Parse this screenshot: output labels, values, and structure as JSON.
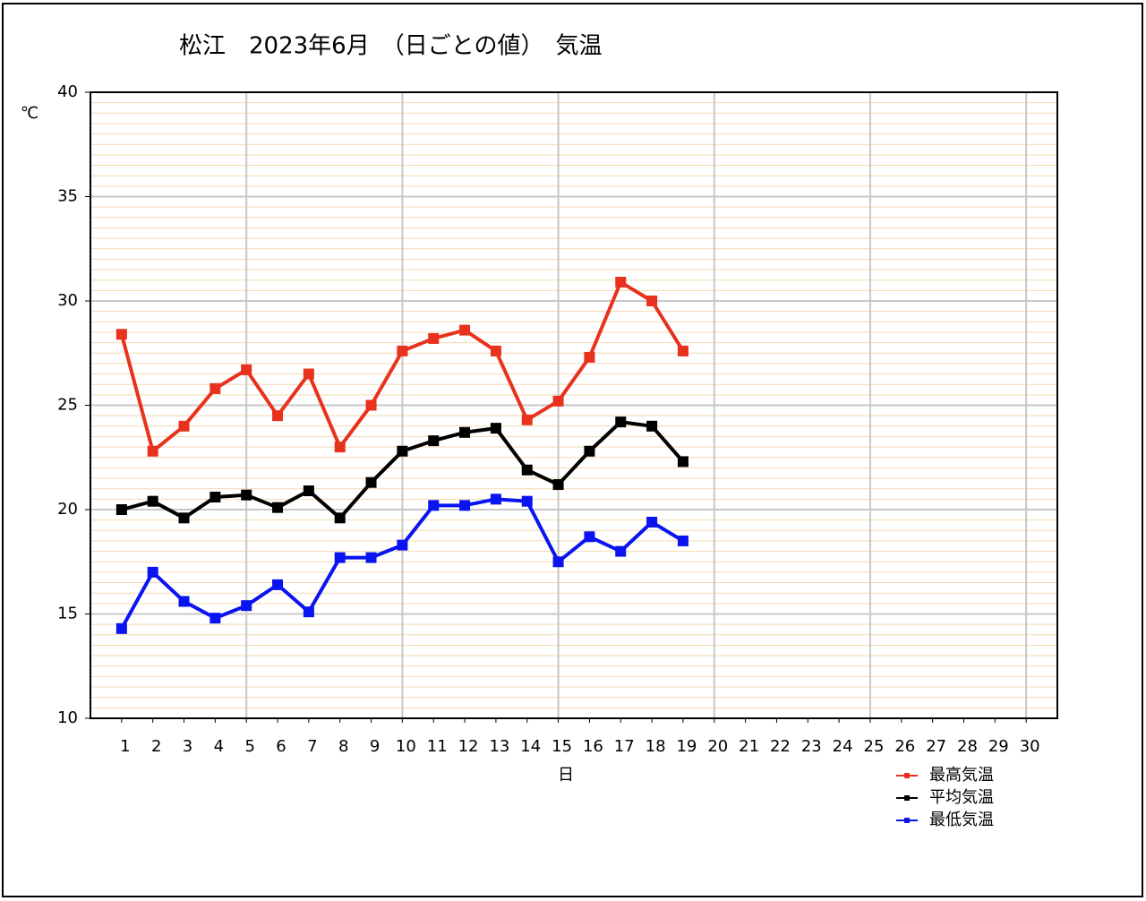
{
  "chart_data": {
    "type": "line",
    "title": "松江　2023年6月　（日ごとの値）　気温",
    "y_label": "℃",
    "x_label": "日",
    "x": [
      1,
      2,
      3,
      4,
      5,
      6,
      7,
      8,
      9,
      10,
      11,
      12,
      13,
      14,
      15,
      16,
      17,
      18,
      19
    ],
    "xlim": [
      0,
      31
    ],
    "xticks": [
      1,
      2,
      3,
      4,
      5,
      6,
      7,
      8,
      9,
      10,
      11,
      12,
      13,
      14,
      15,
      16,
      17,
      18,
      19,
      20,
      21,
      22,
      23,
      24,
      25,
      26,
      27,
      28,
      29,
      30
    ],
    "ylim": [
      10,
      40
    ],
    "yticks": [
      10,
      15,
      20,
      25,
      30,
      35,
      40
    ],
    "grid": true,
    "legend": "bottom-right",
    "series": [
      {
        "name": "最高気温",
        "color": "#e8321e",
        "values": [
          28.4,
          22.8,
          24.0,
          25.8,
          26.7,
          24.5,
          26.5,
          23.0,
          25.0,
          27.6,
          28.2,
          28.6,
          27.6,
          24.3,
          25.2,
          27.3,
          30.9,
          30.0,
          27.6
        ]
      },
      {
        "name": "平均気温",
        "color": "#000000",
        "values": [
          20.0,
          20.4,
          19.6,
          20.6,
          20.7,
          20.1,
          20.9,
          19.6,
          21.3,
          22.8,
          23.3,
          23.7,
          23.9,
          21.9,
          21.2,
          22.8,
          24.2,
          24.0,
          22.3
        ]
      },
      {
        "name": "最低気温",
        "color": "#0a14f0",
        "values": [
          14.3,
          17.0,
          15.6,
          14.8,
          15.4,
          16.4,
          15.1,
          17.7,
          17.7,
          18.3,
          20.2,
          20.2,
          20.5,
          20.4,
          17.5,
          18.7,
          18.0,
          19.4,
          18.5
        ]
      }
    ]
  }
}
